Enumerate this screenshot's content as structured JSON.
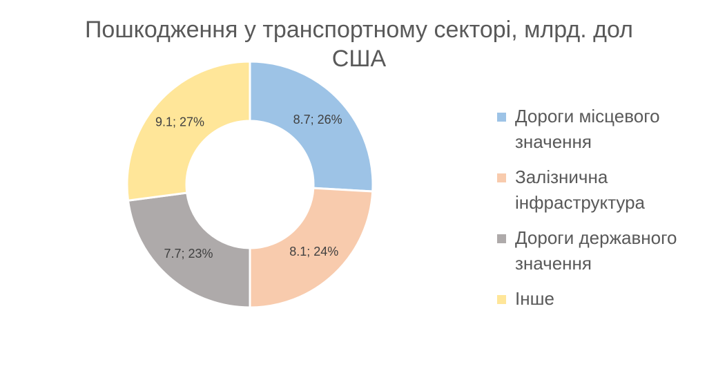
{
  "chart_data": {
    "type": "donut",
    "title": "Пошкодження у транспортному секторі, млрд. дол США",
    "categories": [
      "Дороги місцевого значення",
      "Залізнична інфраструктура",
      "Дороги державного значення",
      "Інше"
    ],
    "values": [
      8.7,
      8.1,
      7.7,
      9.1
    ],
    "percentages": [
      26,
      24,
      23,
      27
    ],
    "data_labels": [
      "8.7; 26%",
      "8.1; 24%",
      "7.7; 23%",
      "9.1; 27%"
    ],
    "colors": [
      "#9DC3E6",
      "#F8CBAD",
      "#AEAAAA",
      "#FFE699"
    ],
    "legend_position": "right"
  }
}
